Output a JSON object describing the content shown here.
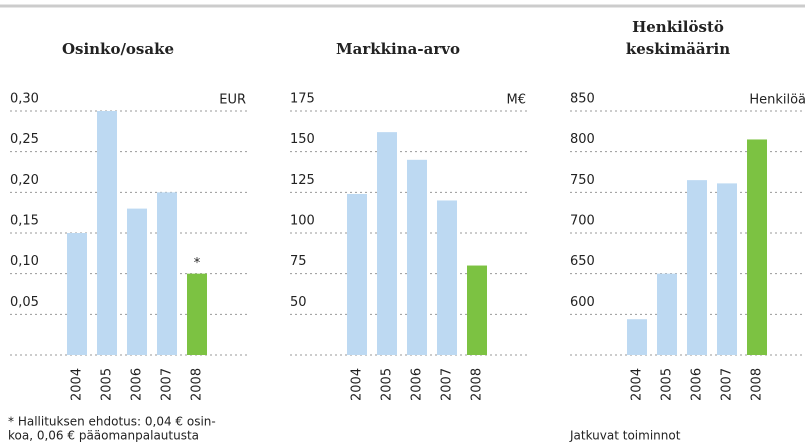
{
  "chart_data": [
    {
      "type": "bar",
      "title": [
        "Osinko/osake"
      ],
      "unit": "EUR",
      "categories": [
        "2004",
        "2005",
        "2006",
        "2007",
        "2008"
      ],
      "values": [
        0.15,
        0.3,
        0.18,
        0.2,
        0.1
      ],
      "colors": [
        "#bdd9f2",
        "#bdd9f2",
        "#bdd9f2",
        "#bdd9f2",
        "#7cc242"
      ],
      "ylim": [
        0,
        0.3
      ],
      "yticks": [
        {
          "value": 0.05,
          "label": "0,05"
        },
        {
          "value": 0.1,
          "label": "0,10"
        },
        {
          "value": 0.15,
          "label": "0,15"
        },
        {
          "value": 0.2,
          "label": "0,20"
        },
        {
          "value": 0.25,
          "label": "0,25"
        },
        {
          "value": 0.3,
          "label": "0,30"
        }
      ],
      "annotation": "*",
      "note": [
        "* Hallituksen ehdotus: 0,04 € osin-",
        "koa, 0,06 € pääomanpalautusta"
      ]
    },
    {
      "type": "bar",
      "title": [
        "Markkina-arvo"
      ],
      "unit": "M€",
      "categories": [
        "2004",
        "2005",
        "2006",
        "2007",
        "2008"
      ],
      "values": [
        124,
        162,
        145,
        120,
        80
      ],
      "colors": [
        "#bdd9f2",
        "#bdd9f2",
        "#bdd9f2",
        "#bdd9f2",
        "#7cc242"
      ],
      "ylim": [
        25,
        175
      ],
      "yticks": [
        50,
        75,
        100,
        125,
        150,
        175
      ]
    },
    {
      "type": "bar",
      "title": [
        "Henkilöstö",
        "keskimäärin"
      ],
      "unit": "Henkilöä",
      "categories": [
        "2004",
        "2005",
        "2006",
        "2007",
        "2008"
      ],
      "values": [
        594,
        650,
        765,
        761,
        815
      ],
      "colors": [
        "#bdd9f2",
        "#bdd9f2",
        "#bdd9f2",
        "#bdd9f2",
        "#7cc242"
      ],
      "ylim": [
        550,
        850
      ],
      "yticks": [
        600,
        650,
        700,
        750,
        800,
        850
      ],
      "note": [
        "Jatkuvat toiminnot"
      ]
    }
  ]
}
